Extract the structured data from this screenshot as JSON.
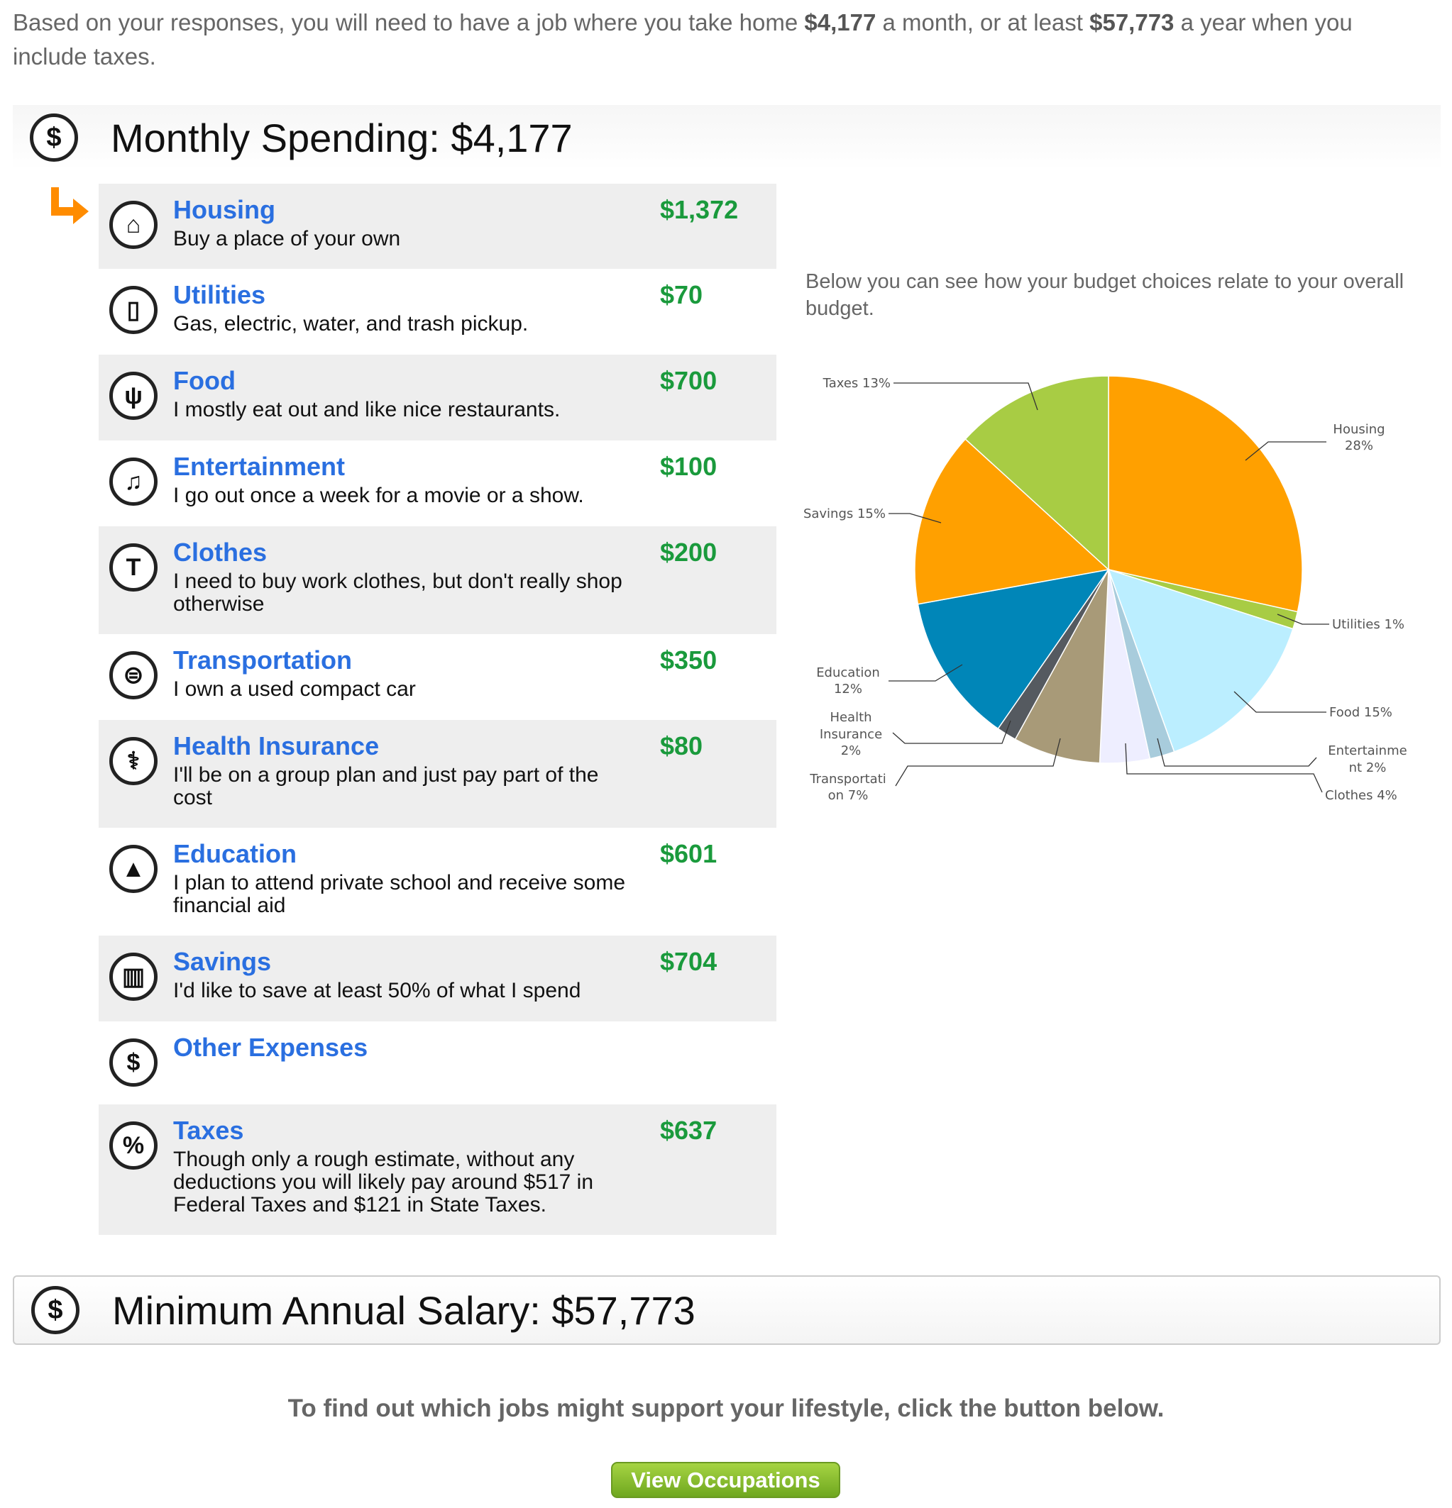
{
  "intro": {
    "pre": "Based on your responses, you will need to have a job where you take home ",
    "monthly": "$4,177",
    "mid": " a month, or at least ",
    "annual": "$57,773",
    "post": " a year when you include taxes."
  },
  "monthly_header": {
    "title": "Monthly Spending: $4,177",
    "icon": "dollar-icon"
  },
  "items": [
    {
      "title": "Housing",
      "desc": "Buy a place of your own",
      "amount": "$1,372",
      "icon": "house-icon",
      "selected": true
    },
    {
      "title": "Utilities",
      "desc": "Gas, electric, water, and trash pickup.",
      "amount": "$70",
      "icon": "phone-icon"
    },
    {
      "title": "Food",
      "desc": "I mostly eat out and like nice restaurants.",
      "amount": "$700",
      "icon": "fork-knife-icon"
    },
    {
      "title": "Entertainment",
      "desc": "I go out once a week for a movie or a show.",
      "amount": "$100",
      "icon": "music-note-icon"
    },
    {
      "title": "Clothes",
      "desc": "I need to buy work clothes, but don't really shop otherwise",
      "amount": "$200",
      "icon": "tshirt-icon"
    },
    {
      "title": "Transportation",
      "desc": "I own a used compact car",
      "amount": "$350",
      "icon": "car-icon"
    },
    {
      "title": "Health Insurance",
      "desc": "I'll be on a group plan and just pay part of the cost",
      "amount": "$80",
      "icon": "caduceus-icon"
    },
    {
      "title": "Education",
      "desc": "I plan to attend private school and receive some financial aid",
      "amount": "$601",
      "icon": "graduation-cap-icon"
    },
    {
      "title": "Savings",
      "desc": "I'd like to save at least 50% of what I spend",
      "amount": "$704",
      "icon": "bar-chart-icon"
    },
    {
      "title": "Other Expenses",
      "desc": "",
      "amount": "",
      "icon": "dollar-icon"
    },
    {
      "title": "Taxes",
      "desc": "Though only a rough estimate, without any deductions you will likely pay around $517 in Federal Taxes and $121 in State Taxes.",
      "amount": "$637",
      "icon": "percent-icon"
    }
  ],
  "chart_note": "Below you can see how your budget choices relate to your overall budget.",
  "chart_data": {
    "type": "pie",
    "start": "12 o'clock, clockwise",
    "categories": [
      "Housing",
      "Utilities",
      "Food",
      "Entertainment",
      "Clothes",
      "Transportation",
      "Health Insurance",
      "Education",
      "Savings",
      "Taxes"
    ],
    "values": [
      1372,
      70,
      700,
      100,
      200,
      350,
      80,
      601,
      704,
      637
    ],
    "labels": [
      [
        "Housing",
        "28%"
      ],
      [
        "Utilities 1%"
      ],
      [
        "Food 15%"
      ],
      [
        "Entertainme",
        "nt 2%"
      ],
      [
        "Clothes 4%"
      ],
      [
        "Transportati",
        "on 7%"
      ],
      [
        "Health",
        "Insurance",
        "2%"
      ],
      [
        "Education",
        "12%"
      ],
      [
        "Savings 15%"
      ],
      [
        "Taxes 13%"
      ]
    ],
    "colors": [
      "#FFA000",
      "#A8CC44",
      "#BBEEFF",
      "#A8CCDC",
      "#EEEEFF",
      "#A89A78",
      "#555A60",
      "#0086B8",
      "#FFA000",
      "#A8CC44"
    ]
  },
  "salary_header": {
    "title": "Minimum Annual Salary: $57,773",
    "icon": "dollar-icon"
  },
  "cta": "To find out which jobs might support your lifestyle, click the button below.",
  "button": "View Occupations",
  "colors": {
    "title_blue": "#2A6FE0",
    "amount_green": "#1A9A3C",
    "arrow_orange": "#FF8C00",
    "button_green": "#8BC34A"
  }
}
